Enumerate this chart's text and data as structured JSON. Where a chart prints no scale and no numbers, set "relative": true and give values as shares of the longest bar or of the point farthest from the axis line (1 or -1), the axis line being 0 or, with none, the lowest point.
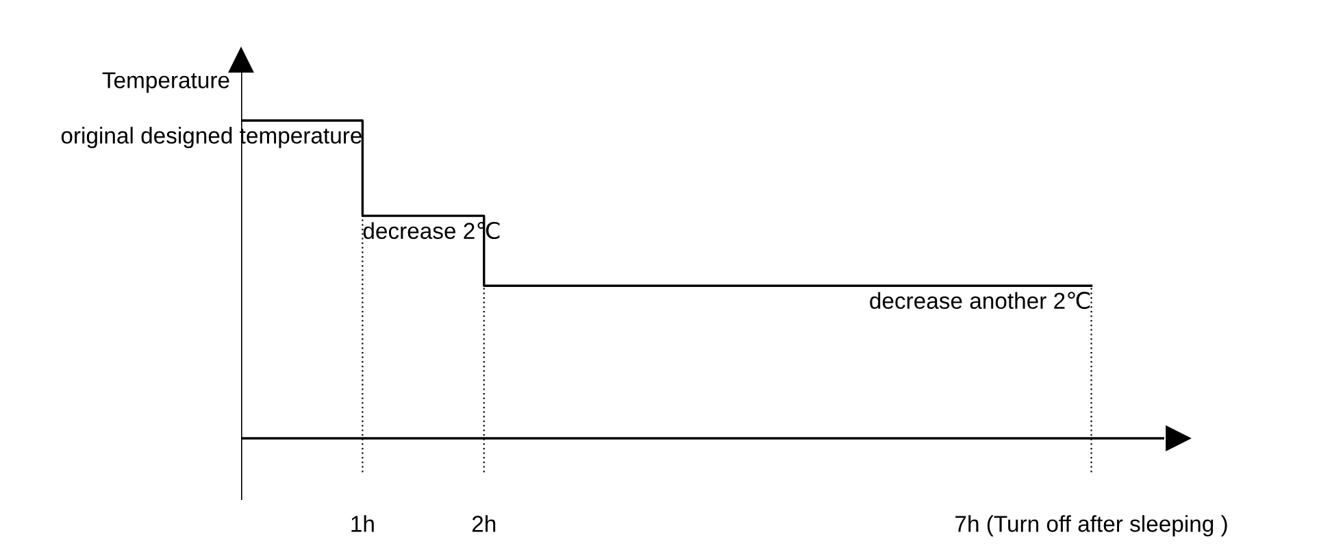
{
  "chart_data": {
    "type": "step",
    "relative": true,
    "ylabel": "Temperature",
    "x": [
      0,
      1,
      2,
      7
    ],
    "xlim": [
      0,
      7.6
    ],
    "xticks": [
      {
        "value": 1,
        "label": "1h"
      },
      {
        "value": 2,
        "label": "2h"
      },
      {
        "value": 7,
        "label": "7h (Turn off after sleeping )"
      }
    ],
    "series": [
      {
        "color": "#000000",
        "values": [
          1,
          0.7,
          0.48,
          0.48
        ]
      }
    ],
    "annotations": [
      "original designed temperature",
      "decrease 2℃",
      "decrease another 2℃"
    ],
    "ref_lines": [
      {
        "axis": "x",
        "value": 1,
        "line_style": "dotted"
      },
      {
        "axis": "x",
        "value": 2,
        "line_style": "dotted"
      },
      {
        "axis": "x",
        "value": 7,
        "line_style": "dotted"
      }
    ],
    "grid": false
  }
}
